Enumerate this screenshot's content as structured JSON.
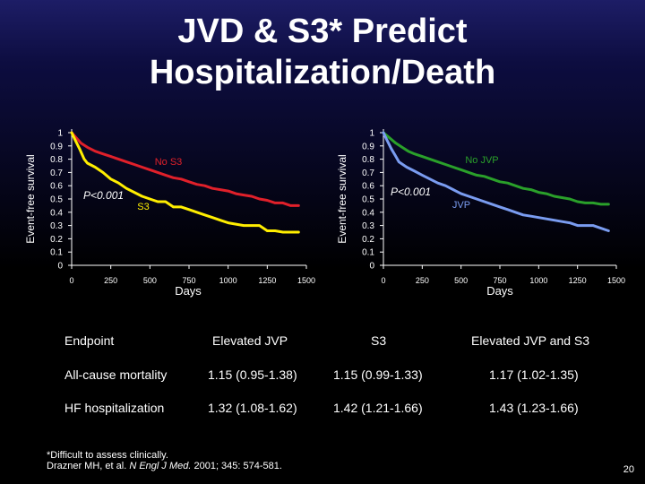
{
  "slide": {
    "title_line1": "JVD & S3* Predict",
    "title_line2": "Hospitalization/Death",
    "page_number": "20"
  },
  "chart_data": [
    {
      "type": "line",
      "ylabel": "Event-free survival",
      "xlabel": "Days",
      "x_ticks": [
        "0",
        "250",
        "500",
        "750",
        "1000",
        "1250",
        "1500"
      ],
      "y_ticks": [
        "0",
        "0.1",
        "0.2",
        "0.3",
        "0.4",
        "0.5",
        "0.6",
        "0.7",
        "0.8",
        "0.9",
        "1"
      ],
      "xlim": [
        0,
        1500
      ],
      "ylim": [
        0,
        1
      ],
      "p_value_label": "P<0.001",
      "series": [
        {
          "name": "No S3",
          "color": "#e0202a",
          "x": [
            0,
            30,
            60,
            100,
            150,
            200,
            250,
            300,
            350,
            400,
            450,
            500,
            550,
            600,
            650,
            700,
            750,
            800,
            850,
            900,
            950,
            1000,
            1050,
            1100,
            1150,
            1200,
            1250,
            1300,
            1350,
            1400,
            1450
          ],
          "y": [
            1.0,
            0.96,
            0.92,
            0.89,
            0.86,
            0.84,
            0.82,
            0.8,
            0.78,
            0.76,
            0.74,
            0.72,
            0.7,
            0.68,
            0.66,
            0.65,
            0.63,
            0.61,
            0.6,
            0.58,
            0.57,
            0.56,
            0.54,
            0.53,
            0.52,
            0.5,
            0.49,
            0.47,
            0.47,
            0.45,
            0.45
          ]
        },
        {
          "name": "S3",
          "color": "#ffee00",
          "x": [
            0,
            20,
            50,
            80,
            100,
            150,
            200,
            250,
            300,
            350,
            400,
            450,
            500,
            550,
            600,
            650,
            700,
            750,
            800,
            850,
            900,
            950,
            1000,
            1050,
            1100,
            1150,
            1200,
            1250,
            1300,
            1350,
            1400,
            1450
          ],
          "y": [
            1.0,
            0.95,
            0.88,
            0.8,
            0.77,
            0.74,
            0.7,
            0.65,
            0.62,
            0.58,
            0.55,
            0.52,
            0.5,
            0.48,
            0.48,
            0.44,
            0.44,
            0.42,
            0.4,
            0.38,
            0.36,
            0.34,
            0.32,
            0.31,
            0.3,
            0.3,
            0.3,
            0.26,
            0.26,
            0.25,
            0.25,
            0.25
          ]
        }
      ]
    },
    {
      "type": "line",
      "ylabel": "Event-free survival",
      "xlabel": "Days",
      "x_ticks": [
        "0",
        "250",
        "500",
        "750",
        "1000",
        "1250",
        "1500"
      ],
      "y_ticks": [
        "0",
        "0.1",
        "0.2",
        "0.3",
        "0.4",
        "0.5",
        "0.6",
        "0.7",
        "0.8",
        "0.9",
        "1"
      ],
      "xlim": [
        0,
        1500
      ],
      "ylim": [
        0,
        1
      ],
      "p_value_label": "P<0.001",
      "series": [
        {
          "name": "No JVP",
          "color": "#2aa02a",
          "x": [
            0,
            40,
            80,
            120,
            160,
            200,
            250,
            300,
            350,
            400,
            450,
            500,
            550,
            600,
            650,
            700,
            750,
            800,
            850,
            900,
            950,
            1000,
            1050,
            1100,
            1150,
            1200,
            1250,
            1300,
            1350,
            1400,
            1450
          ],
          "y": [
            1.0,
            0.96,
            0.92,
            0.89,
            0.86,
            0.84,
            0.82,
            0.8,
            0.78,
            0.76,
            0.74,
            0.72,
            0.7,
            0.68,
            0.67,
            0.65,
            0.63,
            0.62,
            0.6,
            0.58,
            0.57,
            0.55,
            0.54,
            0.52,
            0.51,
            0.5,
            0.48,
            0.47,
            0.47,
            0.46,
            0.46
          ]
        },
        {
          "name": "JVP",
          "color": "#7a9cf0",
          "x": [
            0,
            20,
            50,
            80,
            100,
            150,
            200,
            250,
            300,
            350,
            400,
            450,
            500,
            550,
            600,
            650,
            700,
            750,
            800,
            850,
            900,
            950,
            1000,
            1050,
            1100,
            1150,
            1200,
            1250,
            1300,
            1350,
            1400,
            1450
          ],
          "y": [
            1.0,
            0.95,
            0.88,
            0.82,
            0.78,
            0.74,
            0.71,
            0.68,
            0.65,
            0.62,
            0.6,
            0.57,
            0.54,
            0.52,
            0.5,
            0.48,
            0.46,
            0.44,
            0.42,
            0.4,
            0.38,
            0.37,
            0.36,
            0.35,
            0.34,
            0.33,
            0.32,
            0.3,
            0.3,
            0.3,
            0.28,
            0.26
          ]
        }
      ]
    }
  ],
  "table": {
    "headers": [
      "Endpoint",
      "Elevated JVP",
      "S3",
      "Elevated JVP and S3"
    ],
    "rows": [
      [
        "All-cause mortality",
        "1.15 (0.95-1.38)",
        "1.15 (0.99-1.33)",
        "1.17 (1.02-1.35)"
      ],
      [
        "HF hospitalization",
        "1.32 (1.08-1.62)",
        "1.42 (1.21-1.66)",
        "1.43 (1.23-1.66)"
      ]
    ]
  },
  "footnote": {
    "line1": "*Difficult to assess clinically.",
    "citation_authors": "Drazner MH, et al.",
    "citation_journal": "N Engl J Med.",
    "citation_rest": "2001; 345: 574-581."
  }
}
